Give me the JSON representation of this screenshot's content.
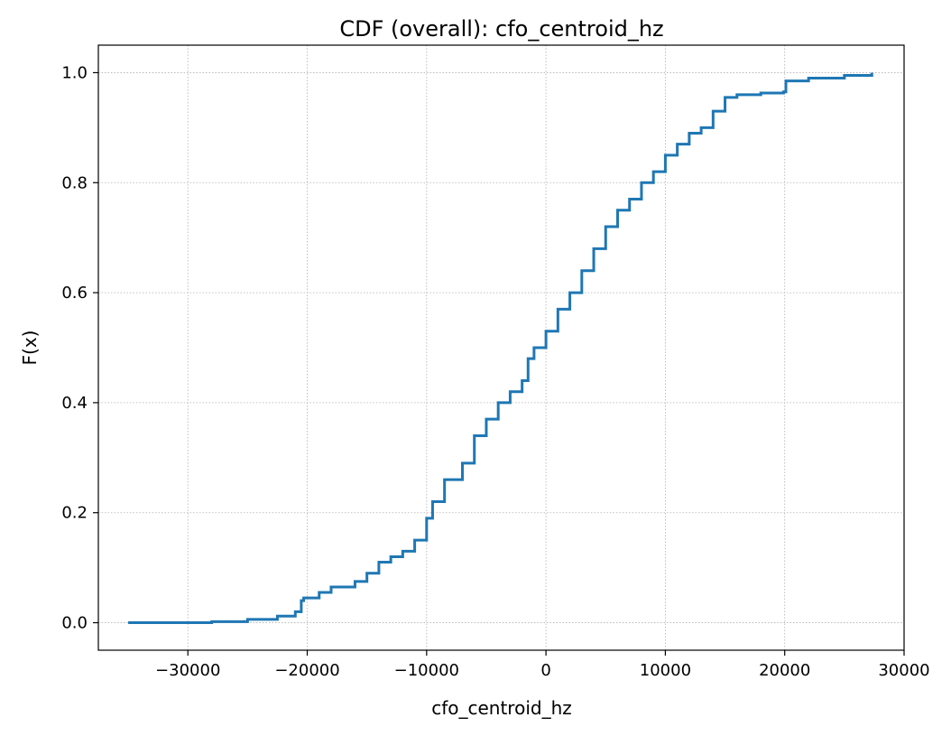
{
  "chart_data": {
    "type": "line",
    "title": "CDF (overall): cfo_centroid_hz",
    "xlabel": "cfo_centroid_hz",
    "ylabel": "F(x)",
    "xlim": [
      -37500,
      30000
    ],
    "ylim": [
      -0.05,
      1.05
    ],
    "xticks": [
      -30000,
      -20000,
      -10000,
      0,
      10000,
      20000,
      30000
    ],
    "xtick_labels": [
      "−30000",
      "−20000",
      "−10000",
      "0",
      "10000",
      "20000",
      "30000"
    ],
    "yticks": [
      0.0,
      0.2,
      0.4,
      0.6,
      0.8,
      1.0
    ],
    "ytick_labels": [
      "0.0",
      "0.2",
      "0.4",
      "0.6",
      "0.8",
      "1.0"
    ],
    "grid": true,
    "legend": "none",
    "series": [
      {
        "color": "#1f77b4",
        "x": [
          -35000,
          -28000,
          -25000,
          -22500,
          -21000,
          -20500,
          -20300,
          -19000,
          -18000,
          -16000,
          -15000,
          -14000,
          -13000,
          -12000,
          -11000,
          -10000,
          -9500,
          -8500,
          -7000,
          -6000,
          -5000,
          -4000,
          -3000,
          -2000,
          -1500,
          -1000,
          0,
          1000,
          2000,
          3000,
          4000,
          5000,
          6000,
          7000,
          8000,
          9000,
          10000,
          11000,
          12000,
          13000,
          14000,
          15000,
          16000,
          18000,
          19900,
          20100,
          22000,
          25000,
          27300
        ],
        "y": [
          0.0,
          0.002,
          0.006,
          0.012,
          0.02,
          0.04,
          0.045,
          0.055,
          0.065,
          0.075,
          0.09,
          0.11,
          0.12,
          0.13,
          0.15,
          0.19,
          0.22,
          0.26,
          0.29,
          0.34,
          0.37,
          0.4,
          0.42,
          0.44,
          0.48,
          0.5,
          0.53,
          0.57,
          0.6,
          0.64,
          0.68,
          0.72,
          0.75,
          0.77,
          0.8,
          0.82,
          0.85,
          0.87,
          0.89,
          0.9,
          0.93,
          0.955,
          0.96,
          0.963,
          0.965,
          0.985,
          0.99,
          0.995,
          1.0
        ]
      }
    ]
  }
}
